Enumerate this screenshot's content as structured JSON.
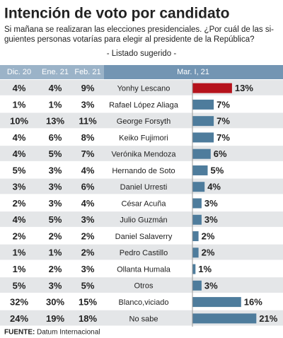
{
  "title": "Intención de voto por candidato",
  "subtitle": [
    "Si mañana se realizaran las elecciones presidenciales. ¿Por cuál de las si-",
    "guientes personas votarías para elegir al presidente de la República?"
  ],
  "note": "- Listado sugerido -",
  "table": {
    "columns": [
      "Dic. 20",
      "Ene. 21",
      "Feb. 21"
    ],
    "rows": [
      [
        "4%",
        "4%",
        "9%"
      ],
      [
        "1%",
        "1%",
        "3%"
      ],
      [
        "10%",
        "13%",
        "11%"
      ],
      [
        "4%",
        "6%",
        "8%"
      ],
      [
        "4%",
        "5%",
        "7%"
      ],
      [
        "5%",
        "3%",
        "4%"
      ],
      [
        "3%",
        "3%",
        "6%"
      ],
      [
        "2%",
        "3%",
        "4%"
      ],
      [
        "4%",
        "5%",
        "3%"
      ],
      [
        "2%",
        "2%",
        "2%"
      ],
      [
        "1%",
        "1%",
        "2%"
      ],
      [
        "1%",
        "2%",
        "3%"
      ],
      [
        "5%",
        "3%",
        "5%"
      ],
      [
        "32%",
        "30%",
        "15%"
      ],
      [
        "24%",
        "19%",
        "18%"
      ]
    ]
  },
  "chart_data": {
    "type": "bar",
    "title": "Mar. I, 21",
    "categories": [
      "Yonhy Lescano",
      "Rafael López Aliaga",
      "George Forsyth",
      "Keiko Fujimori",
      "Verónika Mendoza",
      "Hernando de Soto",
      "Daniel Urresti",
      "César Acuña",
      "Julio Guzmán",
      "Daniel Salaverry",
      "Pedro Castillo",
      "Ollanta Humala",
      "Otros",
      "Blanco,viciado",
      "No sabe"
    ],
    "values": [
      13,
      7,
      7,
      7,
      6,
      5,
      4,
      3,
      3,
      2,
      2,
      1,
      3,
      16,
      21
    ],
    "value_labels": [
      "13%",
      "7%",
      "7%",
      "7%",
      "6%",
      "5%",
      "4%",
      "3%",
      "3%",
      "2%",
      "2%",
      "1%",
      "3%",
      "16%",
      "21%"
    ],
    "colors": [
      "#b5121b",
      "#4e7c9c",
      "#4e7c9c",
      "#4e7c9c",
      "#4e7c9c",
      "#4e7c9c",
      "#4e7c9c",
      "#4e7c9c",
      "#4e7c9c",
      "#4e7c9c",
      "#4e7c9c",
      "#4e7c9c",
      "#4e7c9c",
      "#4e7c9c",
      "#4e7c9c"
    ]
  },
  "source": {
    "label": "FUENTE:",
    "text": "Datum Internacional"
  }
}
